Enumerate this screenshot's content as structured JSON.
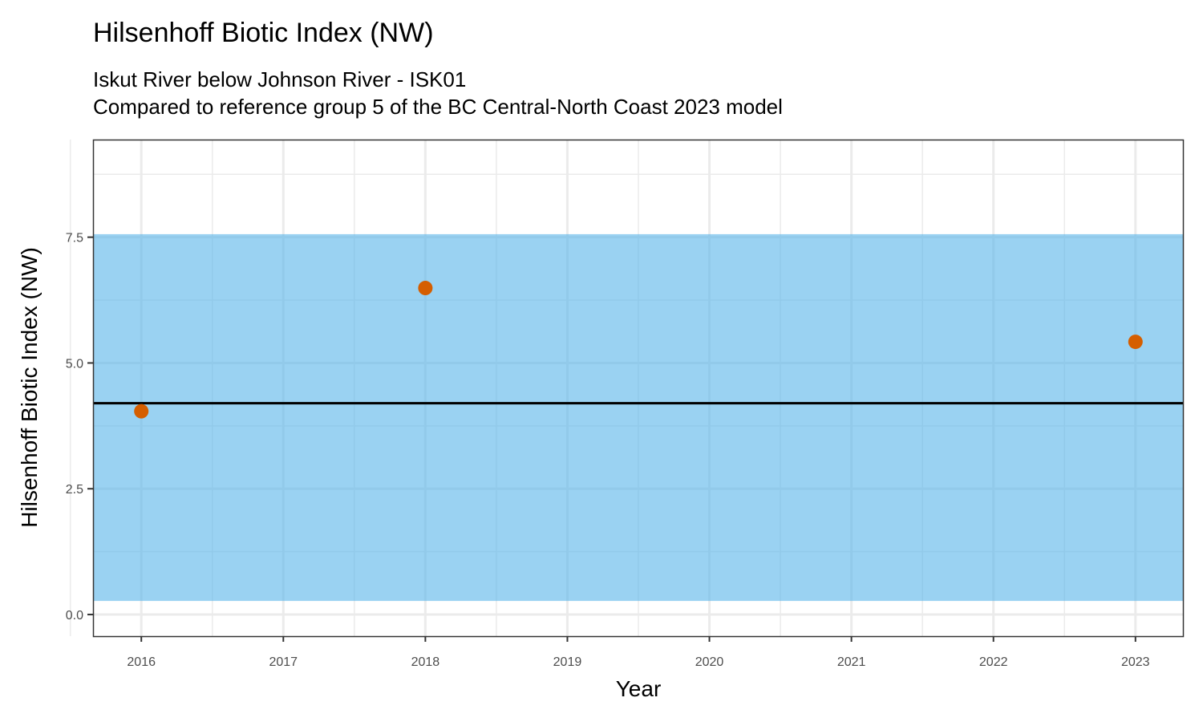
{
  "chart_data": {
    "type": "scatter",
    "title": "Hilsenhoff Biotic Index (NW)",
    "subtitle_lines": [
      "Iskut River below Johnson River - ISK01",
      "Compared to reference group 5 of the BC Central-North Coast 2023 model"
    ],
    "xlabel": "Year",
    "ylabel": "Hilsenhoff Biotic Index (NW)",
    "xlim": [
      2015.66,
      2023.34
    ],
    "ylim": [
      -0.43,
      9.44
    ],
    "x_ticks": [
      2016,
      2017,
      2018,
      2019,
      2020,
      2021,
      2022,
      2023
    ],
    "y_ticks": [
      0.0,
      2.5,
      5.0,
      7.5
    ],
    "y_tick_labels": [
      "0.0",
      "2.5",
      "5.0",
      "7.5"
    ],
    "grid": true,
    "reference_band": {
      "lower": 0.27,
      "upper": 7.56,
      "color": "#9AD2F0"
    },
    "reference_mean": {
      "value": 4.2,
      "color": "#000000"
    },
    "points": {
      "x": [
        2016,
        2018,
        2023
      ],
      "y": [
        4.04,
        6.49,
        5.42
      ],
      "color": "#D55E00"
    }
  }
}
